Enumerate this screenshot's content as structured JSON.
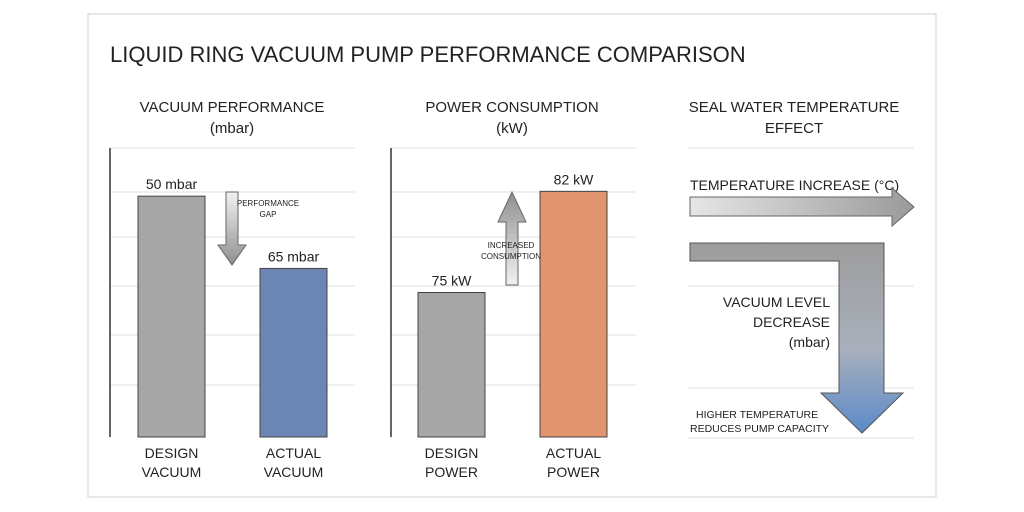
{
  "title": "LIQUID RING VACUUM PUMP PERFORMANCE COMPARISON",
  "chart_data": [
    {
      "type": "bar",
      "title": "VACUUM PERFORMANCE",
      "subtitle": "(mbar)",
      "categories": [
        "DESIGN VACUUM",
        "ACTUAL VACUUM"
      ],
      "category_lines": [
        [
          "DESIGN",
          "VACUUM"
        ],
        [
          "ACTUAL",
          "VACUUM"
        ]
      ],
      "values": [
        50,
        65
      ],
      "data_labels": [
        "50 mbar",
        "65 mbar"
      ],
      "colors": [
        "#a6a6a6",
        "#6b86b3"
      ],
      "ylim": [
        100,
        40
      ],
      "grid": true,
      "annotation": [
        "PERFORMANCE",
        "GAP"
      ]
    },
    {
      "type": "bar",
      "title": "POWER CONSUMPTION",
      "subtitle": "(kW)",
      "categories": [
        "DESIGN POWER",
        "ACTUAL POWER"
      ],
      "category_lines": [
        [
          "DESIGN",
          "POWER"
        ],
        [
          "ACTUAL",
          "POWER"
        ]
      ],
      "values": [
        75,
        82
      ],
      "data_labels": [
        "75 kW",
        "82 kW"
      ],
      "colors": [
        "#a6a6a6",
        "#e0956f"
      ],
      "ylim": [
        65,
        85
      ],
      "grid": true,
      "annotation": [
        "INCREASED",
        "CONSUMPTION"
      ]
    }
  ],
  "seal_panel": {
    "title_lines": [
      "SEAL WATER TEMPERATURE",
      "EFFECT"
    ],
    "temp_arrow_label": "TEMPERATURE INCREASE (°C)",
    "vacuum_lines": [
      "VACUUM LEVEL",
      "DECREASE",
      "(mbar)"
    ],
    "note_lines": [
      "HIGHER TEMPERATURE",
      "REDUCES PUMP CAPACITY"
    ]
  }
}
